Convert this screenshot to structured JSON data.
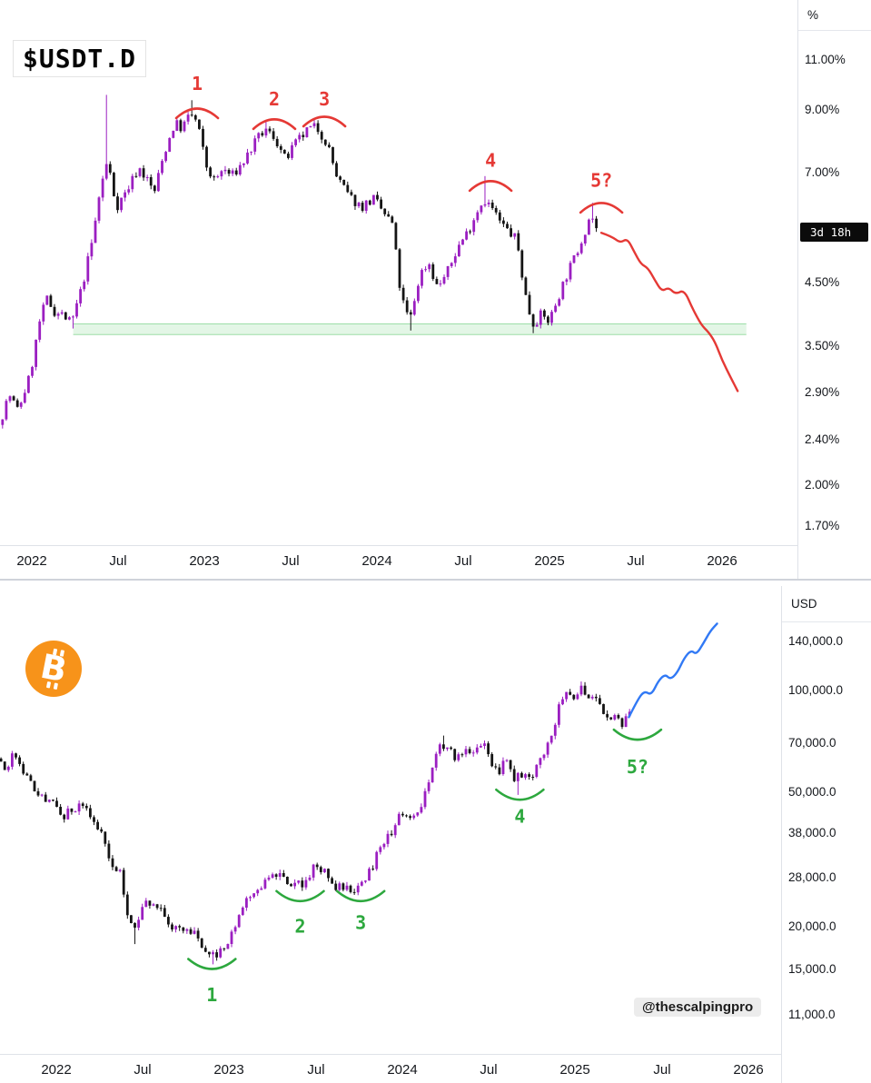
{
  "top_panel": {
    "title": "$USDT.D",
    "axis_unit": "%",
    "countdown": "3d 18h"
  },
  "bottom_panel": {
    "axis_unit": "USD",
    "watermark": "@thescalpingpro",
    "logo": "bitcoin-logo",
    "logo_color": "#f7931a"
  },
  "chart_data": [
    {
      "type": "candlestick",
      "symbol": "$USDT.D",
      "title": "Tether Dominance % with 5-wave top count and projected decline",
      "scale": "log",
      "grid": false,
      "xlim": [
        2021.816,
        2026.436
      ],
      "ylim": [
        1.576,
        13.96
      ],
      "up_color": "#9b1fc1",
      "down_color": "#141414",
      "annotation_color": "#e53935",
      "arc_style": "top",
      "last_price": 5.5,
      "y_ticks": [
        {
          "label": "11.00%",
          "value": 11.0
        },
        {
          "label": "9.00%",
          "value": 9.0
        },
        {
          "label": "7.00%",
          "value": 7.0
        },
        {
          "label": "4.50%",
          "value": 4.5
        },
        {
          "label": "3.50%",
          "value": 3.5
        },
        {
          "label": "2.90%",
          "value": 2.9
        },
        {
          "label": "2.40%",
          "value": 2.4
        },
        {
          "label": "2.00%",
          "value": 2.0
        },
        {
          "label": "1.70%",
          "value": 1.7
        }
      ],
      "x_ticks": [
        {
          "label": "2022",
          "t": 2022.0
        },
        {
          "label": "Jul",
          "t": 2022.5
        },
        {
          "label": "2023",
          "t": 2023.0
        },
        {
          "label": "Jul",
          "t": 2023.5
        },
        {
          "label": "2024",
          "t": 2024.0
        },
        {
          "label": "Jul",
          "t": 2024.5
        },
        {
          "label": "2025",
          "t": 2025.0
        },
        {
          "label": "Jul",
          "t": 2025.5
        },
        {
          "label": "2026",
          "t": 2026.0
        }
      ],
      "anchors": [
        [
          2021.82,
          2.55
        ],
        [
          2021.88,
          2.88
        ],
        [
          2021.93,
          2.7
        ],
        [
          2022.0,
          3.1
        ],
        [
          2022.06,
          3.9
        ],
        [
          2022.1,
          4.22
        ],
        [
          2022.14,
          4.02
        ],
        [
          2022.19,
          3.96
        ],
        [
          2022.24,
          3.82
        ],
        [
          2022.3,
          4.4
        ],
        [
          2022.36,
          5.3
        ],
        [
          2022.41,
          6.6
        ],
        [
          2022.45,
          7.35
        ],
        [
          2022.5,
          6.1
        ],
        [
          2022.56,
          6.5
        ],
        [
          2022.63,
          7.15
        ],
        [
          2022.68,
          6.8
        ],
        [
          2022.72,
          6.45
        ],
        [
          2022.78,
          7.6
        ],
        [
          2022.84,
          8.55
        ],
        [
          2022.88,
          8.35
        ],
        [
          2022.93,
          8.85
        ],
        [
          2022.97,
          8.55
        ],
        [
          2023.02,
          7.2
        ],
        [
          2023.07,
          6.75
        ],
        [
          2023.12,
          7.1
        ],
        [
          2023.17,
          6.9
        ],
        [
          2023.23,
          7.25
        ],
        [
          2023.3,
          7.85
        ],
        [
          2023.36,
          8.3
        ],
        [
          2023.42,
          8.05
        ],
        [
          2023.48,
          7.35
        ],
        [
          2023.54,
          7.85
        ],
        [
          2023.61,
          8.3
        ],
        [
          2023.66,
          8.4
        ],
        [
          2023.72,
          7.9
        ],
        [
          2023.78,
          6.85
        ],
        [
          2023.85,
          6.35
        ],
        [
          2023.92,
          6.1
        ],
        [
          2023.99,
          6.3
        ],
        [
          2024.05,
          5.95
        ],
        [
          2024.1,
          5.7
        ],
        [
          2024.15,
          4.25
        ],
        [
          2024.2,
          3.85
        ],
        [
          2024.26,
          4.65
        ],
        [
          2024.31,
          4.9
        ],
        [
          2024.36,
          4.42
        ],
        [
          2024.42,
          4.7
        ],
        [
          2024.48,
          5.2
        ],
        [
          2024.54,
          5.55
        ],
        [
          2024.59,
          6.0
        ],
        [
          2024.63,
          6.3
        ],
        [
          2024.68,
          6.05
        ],
        [
          2024.73,
          5.7
        ],
        [
          2024.78,
          5.5
        ],
        [
          2024.82,
          5.35
        ],
        [
          2024.87,
          4.3
        ],
        [
          2024.91,
          3.82
        ],
        [
          2024.96,
          3.95
        ],
        [
          2025.01,
          3.86
        ],
        [
          2025.06,
          4.25
        ],
        [
          2025.11,
          4.65
        ],
        [
          2025.16,
          5.0
        ],
        [
          2025.21,
          5.5
        ],
        [
          2025.25,
          5.95
        ],
        [
          2025.29,
          5.5
        ]
      ],
      "spikes_high": [
        [
          2022.44,
          9.55
        ],
        [
          2022.93,
          9.35
        ],
        [
          2023.36,
          8.6
        ],
        [
          2023.63,
          8.7
        ],
        [
          2024.63,
          6.9
        ],
        [
          2025.25,
          6.2
        ]
      ],
      "spikes_low": [
        [
          2022.24,
          3.75
        ],
        [
          2024.2,
          3.72
        ],
        [
          2024.91,
          3.68
        ]
      ],
      "gen": {
        "t_start": 2021.82,
        "t_end": 2025.29,
        "dt": 0.0215,
        "vol": 0.022,
        "wick": 0.015,
        "seed": 7
      },
      "support_zone": {
        "t0": 2022.24,
        "t1": 2026.14,
        "p0": 3.66,
        "p1": 3.82,
        "fill": "rgba(102,204,119,0.18)",
        "edge": "rgba(102,204,119,0.6)"
      },
      "wave_annotations": [
        {
          "label": "1",
          "t": 2022.958,
          "p_arc": 8.96,
          "p_label": 10.0
        },
        {
          "label": "2",
          "t": 2023.405,
          "p_arc": 8.58,
          "p_label": 9.4
        },
        {
          "label": "3",
          "t": 2023.695,
          "p_arc": 8.67,
          "p_label": 9.4
        },
        {
          "label": "4",
          "t": 2024.658,
          "p_arc": 6.7,
          "p_label": 7.35
        },
        {
          "label": "5?",
          "t": 2025.3,
          "p_arc": 6.14,
          "p_label": 6.78
        }
      ],
      "projection": {
        "color": "#e53935",
        "points": [
          [
            2025.3,
            5.5
          ],
          [
            2025.36,
            5.42
          ],
          [
            2025.41,
            5.28
          ],
          [
            2025.45,
            5.38
          ],
          [
            2025.49,
            5.1
          ],
          [
            2025.53,
            4.85
          ],
          [
            2025.57,
            4.78
          ],
          [
            2025.61,
            4.55
          ],
          [
            2025.65,
            4.35
          ],
          [
            2025.69,
            4.42
          ],
          [
            2025.73,
            4.3
          ],
          [
            2025.78,
            4.38
          ],
          [
            2025.83,
            4.05
          ],
          [
            2025.88,
            3.8
          ],
          [
            2025.92,
            3.7
          ],
          [
            2025.96,
            3.55
          ],
          [
            2026.0,
            3.3
          ],
          [
            2026.05,
            3.08
          ],
          [
            2026.09,
            2.92
          ]
        ]
      }
    },
    {
      "type": "candlestick",
      "symbol": "Bitcoin / USD",
      "title": "Bitcoin price with 5-wave bottom count and projected rally",
      "scale": "log",
      "grid": false,
      "xlim": [
        2021.675,
        2026.19
      ],
      "ylim": [
        8420,
        204200
      ],
      "up_color": "#9b1fc1",
      "down_color": "#141414",
      "annotation_color": "#2da83e",
      "arc_style": "bottom",
      "y_ticks": [
        {
          "label": "140,000.0",
          "value": 140000
        },
        {
          "label": "100,000.0",
          "value": 100000
        },
        {
          "label": "70,000.0",
          "value": 70000
        },
        {
          "label": "50,000.0",
          "value": 50000
        },
        {
          "label": "38,000.0",
          "value": 38000
        },
        {
          "label": "28,000.0",
          "value": 28000
        },
        {
          "label": "20,000.0",
          "value": 20000
        },
        {
          "label": "15,000.0",
          "value": 15000
        },
        {
          "label": "11,000.0",
          "value": 11000
        }
      ],
      "x_ticks": [
        {
          "label": "2022",
          "t": 2022.0
        },
        {
          "label": "Jul",
          "t": 2022.5
        },
        {
          "label": "2023",
          "t": 2023.0
        },
        {
          "label": "Jul",
          "t": 2023.5
        },
        {
          "label": "2024",
          "t": 2024.0
        },
        {
          "label": "Jul",
          "t": 2024.5
        },
        {
          "label": "2025",
          "t": 2025.0
        },
        {
          "label": "Jul",
          "t": 2025.5
        },
        {
          "label": "2026",
          "t": 2026.0
        }
      ],
      "anchors": [
        [
          2021.67,
          63000
        ],
        [
          2021.72,
          59500
        ],
        [
          2021.77,
          65500
        ],
        [
          2021.83,
          57000
        ],
        [
          2021.89,
          50500
        ],
        [
          2021.95,
          47500
        ],
        [
          2022.0,
          47500
        ],
        [
          2022.05,
          42500
        ],
        [
          2022.11,
          44500
        ],
        [
          2022.16,
          46500
        ],
        [
          2022.22,
          40500
        ],
        [
          2022.28,
          38500
        ],
        [
          2022.33,
          30500
        ],
        [
          2022.38,
          29500
        ],
        [
          2022.43,
          20800
        ],
        [
          2022.47,
          19800
        ],
        [
          2022.52,
          23200
        ],
        [
          2022.57,
          24000
        ],
        [
          2022.63,
          21500
        ],
        [
          2022.69,
          19900
        ],
        [
          2022.75,
          19400
        ],
        [
          2022.81,
          19200
        ],
        [
          2022.86,
          16900
        ],
        [
          2022.9,
          16300
        ],
        [
          2022.96,
          16800
        ],
        [
          2023.01,
          17800
        ],
        [
          2023.06,
          21500
        ],
        [
          2023.11,
          23600
        ],
        [
          2023.16,
          24800
        ],
        [
          2023.22,
          28200
        ],
        [
          2023.27,
          29400
        ],
        [
          2023.33,
          27300
        ],
        [
          2023.39,
          26300
        ],
        [
          2023.45,
          27200
        ],
        [
          2023.5,
          30400
        ],
        [
          2023.56,
          29100
        ],
        [
          2023.61,
          26400
        ],
        [
          2023.67,
          26000
        ],
        [
          2023.73,
          25900
        ],
        [
          2023.79,
          27600
        ],
        [
          2023.84,
          30500
        ],
        [
          2023.89,
          35200
        ],
        [
          2023.94,
          37600
        ],
        [
          2024.0,
          42600
        ],
        [
          2024.06,
          42900
        ],
        [
          2024.11,
          44000
        ],
        [
          2024.15,
          51000
        ],
        [
          2024.19,
          62500
        ],
        [
          2024.23,
          69500
        ],
        [
          2024.28,
          66000
        ],
        [
          2024.33,
          63500
        ],
        [
          2024.38,
          66500
        ],
        [
          2024.43,
          67800
        ],
        [
          2024.48,
          69000
        ],
        [
          2024.53,
          61000
        ],
        [
          2024.57,
          57500
        ],
        [
          2024.61,
          64000
        ],
        [
          2024.66,
          54500
        ],
        [
          2024.71,
          57500
        ],
        [
          2024.76,
          56500
        ],
        [
          2024.8,
          61000
        ],
        [
          2024.84,
          65000
        ],
        [
          2024.88,
          76000
        ],
        [
          2024.92,
          91000
        ],
        [
          2024.96,
          97500
        ],
        [
          2025.0,
          95500
        ],
        [
          2025.04,
          102000
        ],
        [
          2025.09,
          97500
        ],
        [
          2025.13,
          96000
        ],
        [
          2025.18,
          85500
        ],
        [
          2025.23,
          84000
        ],
        [
          2025.28,
          79500
        ],
        [
          2025.32,
          84000
        ]
      ],
      "spikes_high": [
        [
          2024.23,
          73700
        ],
        [
          2025.04,
          106500
        ]
      ],
      "spikes_low": [
        [
          2022.45,
          17800
        ],
        [
          2022.9,
          15500
        ],
        [
          2024.66,
          49200
        ]
      ],
      "gen": {
        "t_start": 2021.67,
        "t_end": 2025.32,
        "dt": 0.0215,
        "vol": 0.032,
        "wick": 0.025,
        "seed": 13
      },
      "wave_annotations": [
        {
          "label": "1",
          "t": 2022.9,
          "p_arc": 15300,
          "p_label": 12600
        },
        {
          "label": "2",
          "t": 2023.41,
          "p_arc": 24300,
          "p_label": 20100
        },
        {
          "label": "3",
          "t": 2023.76,
          "p_arc": 24300,
          "p_label": 20600
        },
        {
          "label": "4",
          "t": 2024.68,
          "p_arc": 48500,
          "p_label": 42500
        },
        {
          "label": "5?",
          "t": 2025.36,
          "p_arc": 73000,
          "p_label": 59500
        }
      ],
      "projection": {
        "color": "#3179f5",
        "points": [
          [
            2025.31,
            83500
          ],
          [
            2025.36,
            94000
          ],
          [
            2025.4,
            100000
          ],
          [
            2025.44,
            97000
          ],
          [
            2025.48,
            107000
          ],
          [
            2025.52,
            112000
          ],
          [
            2025.55,
            108000
          ],
          [
            2025.59,
            113000
          ],
          [
            2025.63,
            125000
          ],
          [
            2025.67,
            132000
          ],
          [
            2025.7,
            128000
          ],
          [
            2025.74,
            138000
          ],
          [
            2025.78,
            150000
          ],
          [
            2025.82,
            158000
          ]
        ]
      }
    }
  ]
}
